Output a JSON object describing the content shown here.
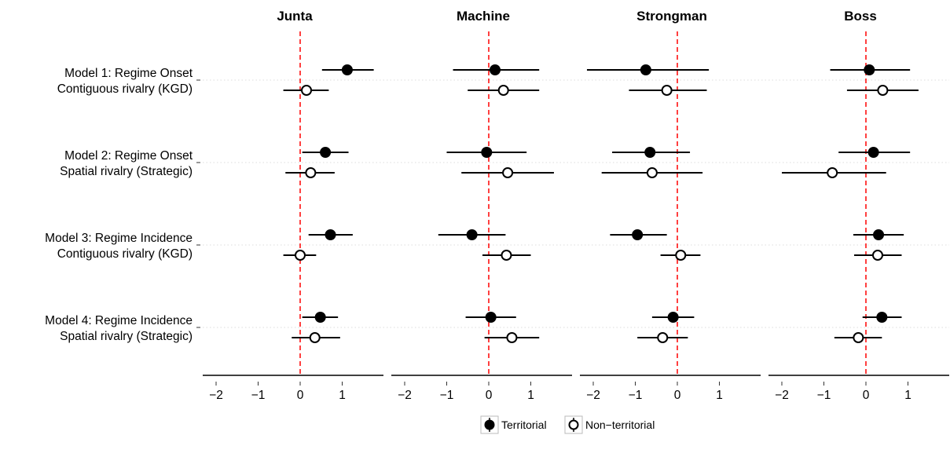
{
  "chart_data": {
    "type": "coefficient-plot",
    "panels": [
      "Junta",
      "Machine",
      "Strongman",
      "Boss"
    ],
    "rows": [
      {
        "line1": "Model 1: Regime Onset",
        "line2": "Contiguous rivalry (KGD)"
      },
      {
        "line1": "Model 2: Regime Onset",
        "line2": "Spatial rivalry (Strategic)"
      },
      {
        "line1": "Model 3: Regime Incidence",
        "line2": "Contiguous rivalry (KGD)"
      },
      {
        "line1": "Model 4: Regime Incidence",
        "line2": "Spatial rivalry (Strategic)"
      }
    ],
    "x_ticks": [
      -2,
      -1,
      0,
      1
    ],
    "x_tick_labels": [
      "−2",
      "−1",
      "0",
      "1"
    ],
    "xlim": [
      -2.4,
      1.9
    ],
    "reference_line": 0,
    "reference_line_color": "#ff0000",
    "legend": {
      "position": "bottom",
      "items": [
        {
          "label": "Territorial",
          "marker": "filled-circle"
        },
        {
          "label": "Non−territorial",
          "marker": "open-circle"
        }
      ]
    },
    "series": [
      {
        "name": "Territorial",
        "estimates": [
          [
            {
              "est": 1.12,
              "lo": 0.52,
              "hi": 1.75
            },
            {
              "est": 0.6,
              "lo": 0.05,
              "hi": 1.15
            },
            {
              "est": 0.72,
              "lo": 0.2,
              "hi": 1.25
            },
            {
              "est": 0.48,
              "lo": 0.05,
              "hi": 0.9
            }
          ],
          [
            {
              "est": 0.15,
              "lo": -0.85,
              "hi": 1.2
            },
            {
              "est": -0.05,
              "lo": -1.0,
              "hi": 0.9
            },
            {
              "est": -0.4,
              "lo": -1.2,
              "hi": 0.4
            },
            {
              "est": 0.05,
              "lo": -0.55,
              "hi": 0.65
            }
          ],
          [
            {
              "est": -0.75,
              "lo": -2.15,
              "hi": 0.75
            },
            {
              "est": -0.65,
              "lo": -1.55,
              "hi": 0.3
            },
            {
              "est": -0.95,
              "lo": -1.6,
              "hi": -0.25
            },
            {
              "est": -0.1,
              "lo": -0.6,
              "hi": 0.4
            }
          ],
          [
            {
              "est": 0.08,
              "lo": -0.85,
              "hi": 1.05
            },
            {
              "est": 0.18,
              "lo": -0.65,
              "hi": 1.05
            },
            {
              "est": 0.3,
              "lo": -0.3,
              "hi": 0.9
            },
            {
              "est": 0.38,
              "lo": -0.08,
              "hi": 0.85
            }
          ]
        ]
      },
      {
        "name": "Non−territorial",
        "estimates": [
          [
            {
              "est": 0.15,
              "lo": -0.4,
              "hi": 0.68
            },
            {
              "est": 0.25,
              "lo": -0.35,
              "hi": 0.82
            },
            {
              "est": 0.0,
              "lo": -0.4,
              "hi": 0.38
            },
            {
              "est": 0.35,
              "lo": -0.2,
              "hi": 0.95
            }
          ],
          [
            {
              "est": 0.35,
              "lo": -0.5,
              "hi": 1.2
            },
            {
              "est": 0.45,
              "lo": -0.65,
              "hi": 1.55
            },
            {
              "est": 0.42,
              "lo": -0.15,
              "hi": 1.0
            },
            {
              "est": 0.55,
              "lo": -0.1,
              "hi": 1.2
            }
          ],
          [
            {
              "est": -0.25,
              "lo": -1.15,
              "hi": 0.7
            },
            {
              "est": -0.6,
              "lo": -1.8,
              "hi": 0.6
            },
            {
              "est": 0.08,
              "lo": -0.4,
              "hi": 0.55
            },
            {
              "est": -0.35,
              "lo": -0.95,
              "hi": 0.25
            }
          ],
          [
            {
              "est": 0.4,
              "lo": -0.45,
              "hi": 1.25
            },
            {
              "est": -0.8,
              "lo": -2.0,
              "hi": 0.48
            },
            {
              "est": 0.28,
              "lo": -0.28,
              "hi": 0.85
            },
            {
              "est": -0.18,
              "lo": -0.75,
              "hi": 0.38
            }
          ]
        ]
      }
    ]
  }
}
